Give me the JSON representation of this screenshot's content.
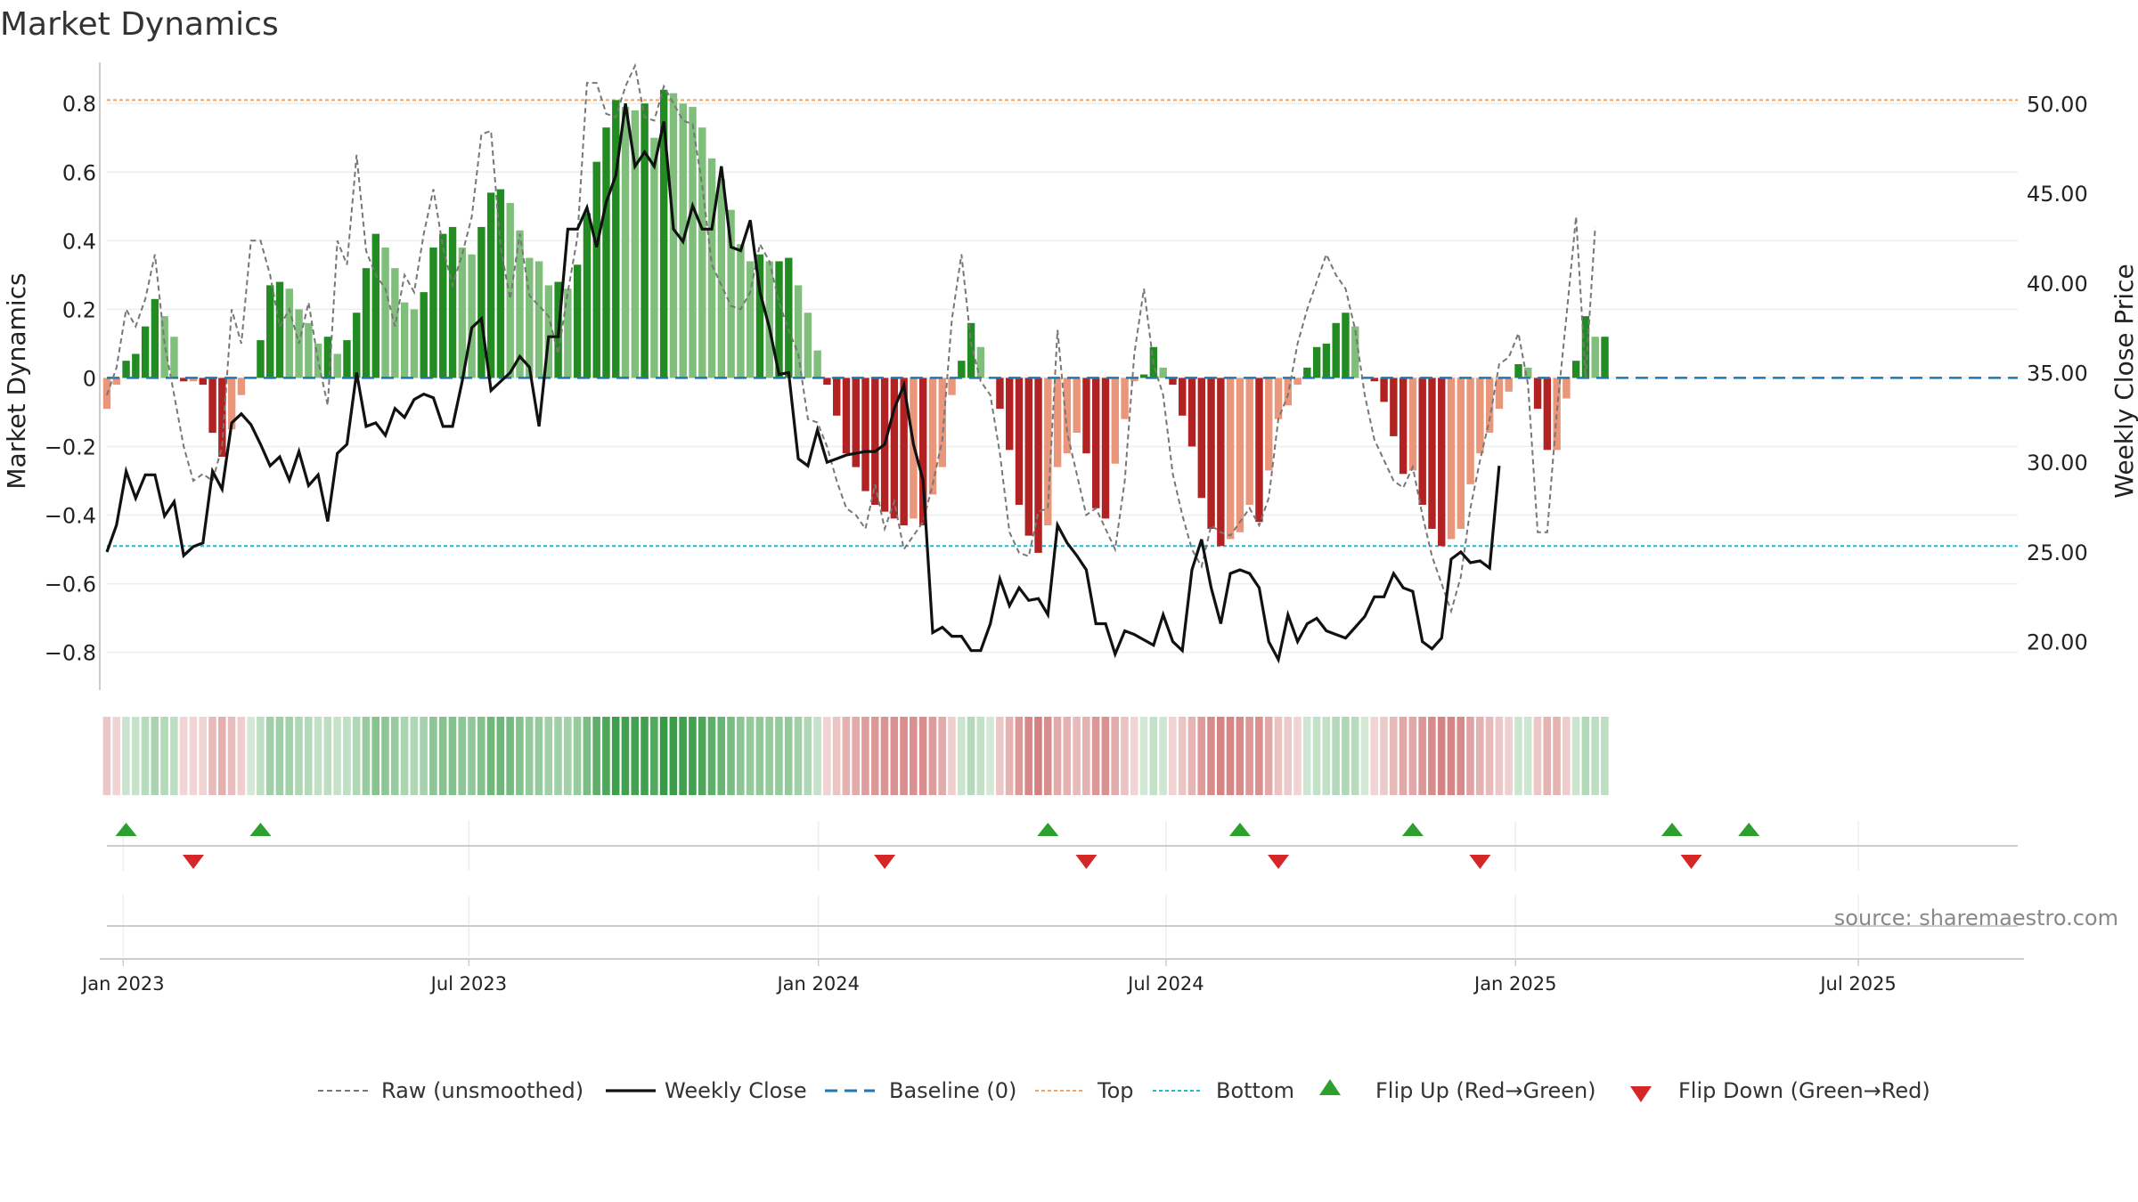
{
  "chart_data": {
    "type": "bar",
    "title": "Market Dynamics",
    "ylabel": "Market Dynamics",
    "y2label": "Weekly Close Price",
    "ylim": [
      -0.91,
      0.92
    ],
    "y2lim": [
      17.3,
      52.3
    ],
    "yticks": [
      0.8,
      0.6,
      0.4,
      0.2,
      0,
      -0.2,
      -0.4,
      -0.6,
      -0.8
    ],
    "yticklabels": [
      "0.8",
      "0.6",
      "0.4",
      "0.2",
      "0",
      "−0.2",
      "−0.4",
      "−0.6",
      "−0.8"
    ],
    "y2ticks": [
      50,
      45,
      40,
      35,
      30,
      25,
      20
    ],
    "y2ticklabels": [
      "50.00",
      "45.00",
      "40.00",
      "35.00",
      "30.00",
      "25.00",
      "20.00"
    ],
    "xticks": [
      "Jan 2023",
      "Jul 2023",
      "Jan 2024",
      "Jul 2024",
      "Jan 2025",
      "Jul 2025"
    ],
    "xtick_weeks": [
      1.7,
      37.7,
      74.1,
      110.3,
      146.7,
      182.4
    ],
    "top_level": 0.81,
    "bottom_level": -0.49,
    "baseline": 0,
    "grid": true,
    "legend_position": "bottom",
    "weeks": 200,
    "momentum": [
      -0.09,
      -0.02,
      0.05,
      0.07,
      0.15,
      0.23,
      0.18,
      0.12,
      -0.01,
      -0.01,
      -0.02,
      -0.16,
      -0.23,
      -0.15,
      -0.05,
      0.0,
      0.11,
      0.27,
      0.28,
      0.26,
      0.2,
      0.16,
      0.1,
      0.12,
      0.07,
      0.11,
      0.19,
      0.32,
      0.42,
      0.38,
      0.32,
      0.22,
      0.2,
      0.25,
      0.38,
      0.42,
      0.44,
      0.38,
      0.36,
      0.44,
      0.54,
      0.55,
      0.51,
      0.43,
      0.35,
      0.34,
      0.27,
      0.28,
      0.26,
      0.33,
      0.48,
      0.63,
      0.73,
      0.81,
      0.79,
      0.78,
      0.8,
      0.7,
      0.84,
      0.83,
      0.8,
      0.79,
      0.73,
      0.64,
      0.58,
      0.49,
      0.39,
      0.34,
      0.36,
      0.34,
      0.34,
      0.35,
      0.27,
      0.19,
      0.08,
      -0.02,
      -0.11,
      -0.22,
      -0.26,
      -0.33,
      -0.37,
      -0.39,
      -0.41,
      -0.43,
      -0.41,
      -0.43,
      -0.34,
      -0.26,
      -0.05,
      0.05,
      0.16,
      0.09,
      0.0,
      -0.09,
      -0.21,
      -0.37,
      -0.46,
      -0.51,
      -0.43,
      -0.26,
      -0.22,
      -0.16,
      -0.22,
      -0.38,
      -0.41,
      -0.25,
      -0.12,
      -0.01,
      0.01,
      0.09,
      0.03,
      -0.02,
      -0.11,
      -0.2,
      -0.35,
      -0.44,
      -0.49,
      -0.47,
      -0.45,
      -0.37,
      -0.42,
      -0.27,
      -0.12,
      -0.08,
      -0.02,
      0.03,
      0.09,
      0.1,
      0.16,
      0.19,
      0.15,
      0.0,
      -0.01,
      -0.07,
      -0.17,
      -0.28,
      -0.27,
      -0.37,
      -0.44,
      -0.49,
      -0.47,
      -0.44,
      -0.31,
      -0.22,
      -0.16,
      -0.09,
      -0.04,
      0.04,
      0.03,
      -0.09,
      -0.21,
      -0.21,
      -0.06,
      0.05,
      0.18,
      0.12,
      0.12
    ],
    "series": [
      {
        "name": "Raw (unsmoothed)",
        "values": [
          -0.05,
          0.03,
          0.2,
          0.15,
          0.23,
          0.36,
          0.1,
          -0.05,
          -0.2,
          -0.3,
          -0.28,
          -0.3,
          -0.2,
          0.2,
          0.1,
          0.4,
          0.4,
          0.3,
          0.15,
          0.2,
          0.1,
          0.22,
          0.05,
          -0.08,
          0.4,
          0.33,
          0.65,
          0.37,
          0.3,
          0.26,
          0.15,
          0.3,
          0.25,
          0.42,
          0.55,
          0.38,
          0.27,
          0.36,
          0.47,
          0.71,
          0.72,
          0.38,
          0.23,
          0.42,
          0.24,
          0.21,
          0.18,
          0.07,
          0.25,
          0.41,
          0.86,
          0.86,
          0.77,
          0.76,
          0.85,
          0.91,
          0.76,
          0.75,
          0.85,
          0.8,
          0.75,
          0.74,
          0.56,
          0.33,
          0.27,
          0.21,
          0.2,
          0.25,
          0.39,
          0.34,
          0.22,
          0.14,
          0.07,
          -0.12,
          -0.13,
          -0.2,
          -0.3,
          -0.38,
          -0.4,
          -0.44,
          -0.31,
          -0.44,
          -0.36,
          -0.5,
          -0.46,
          -0.42,
          -0.31,
          -0.18,
          0.17,
          0.36,
          0.1,
          -0.01,
          -0.05,
          -0.22,
          -0.45,
          -0.51,
          -0.52,
          -0.39,
          -0.38,
          0.14,
          -0.16,
          -0.28,
          -0.4,
          -0.38,
          -0.44,
          -0.5,
          -0.3,
          0.07,
          0.26,
          0.04,
          -0.05,
          -0.28,
          -0.4,
          -0.5,
          -0.55,
          -0.43,
          -0.45,
          -0.46,
          -0.42,
          -0.38,
          -0.43,
          -0.35,
          -0.12,
          -0.05,
          0.1,
          0.2,
          0.28,
          0.36,
          0.3,
          0.26,
          0.14,
          -0.05,
          -0.18,
          -0.24,
          -0.3,
          -0.32,
          -0.26,
          -0.4,
          -0.52,
          -0.6,
          -0.68,
          -0.58,
          -0.38,
          -0.24,
          -0.12,
          0.04,
          0.06,
          0.13,
          -0.02,
          -0.45,
          -0.45,
          -0.1,
          0.18,
          0.47,
          0.0,
          0.44
        ]
      },
      {
        "name": "Weekly Close",
        "values": [
          25.0,
          26.5,
          29.5,
          28.0,
          29.3,
          29.3,
          27.0,
          27.8,
          24.8,
          25.3,
          25.5,
          29.5,
          28.5,
          32.2,
          32.7,
          32.1,
          31.0,
          29.8,
          30.3,
          29.0,
          30.6,
          28.7,
          29.3,
          26.7,
          30.5,
          31.0,
          35.0,
          32.0,
          32.2,
          31.5,
          33.0,
          32.5,
          33.5,
          33.8,
          33.6,
          32.0,
          32.0,
          34.5,
          37.5,
          38.0,
          34.0,
          34.5,
          35.0,
          35.9,
          35.3,
          32.0,
          37.0,
          37.0,
          43.0,
          43.0,
          44.2,
          42.0,
          44.5,
          46.0,
          50.0,
          46.5,
          47.3,
          46.5,
          49.0,
          43.0,
          42.3,
          44.3,
          43.0,
          43.0,
          46.5,
          42.0,
          41.8,
          43.5,
          39.5,
          37.5,
          34.9,
          35.0,
          30.2,
          29.8,
          31.8,
          30.0,
          30.2,
          30.4,
          30.5,
          30.6,
          30.6,
          31.0,
          33.0,
          34.3,
          31.0,
          29.0,
          20.5,
          20.8,
          20.3,
          20.3,
          19.5,
          19.5,
          21.0,
          23.5,
          22.0,
          23.0,
          22.3,
          22.4,
          21.5,
          26.5,
          25.5,
          24.8,
          24.0,
          21.0,
          21.0,
          19.3,
          20.6,
          20.4,
          20.1,
          19.8,
          21.5,
          20.0,
          19.5,
          24.0,
          25.7,
          23.0,
          21.0,
          23.8,
          24.0,
          23.8,
          23.0,
          20.0,
          19.0,
          21.5,
          20.0,
          21.0,
          21.3,
          20.6,
          20.4,
          20.2,
          20.8,
          21.4,
          22.5,
          22.5,
          23.8,
          23.0,
          22.8,
          20.0,
          19.6,
          20.2,
          24.6,
          25.0,
          24.4,
          24.5,
          24.1,
          29.8
        ]
      }
    ],
    "legend": [
      "Raw (unsmoothed)",
      "Weekly Close",
      "Baseline (0)",
      "Top",
      "Bottom",
      "Flip Up (Red→Green)",
      "Flip Down (Green→Red)"
    ],
    "flip_up_weeks": [
      2,
      16,
      98,
      118,
      136,
      163,
      171
    ],
    "flip_down_weeks": [
      9,
      81,
      102,
      122,
      143,
      165
    ],
    "source": "source: sharemaestro.com"
  },
  "colors": {
    "pos_strong": "#228b22",
    "pos_weak": "#7fbf7b",
    "neg_strong": "#b22222",
    "neg_weak": "#e9967a",
    "close_line": "#111111",
    "raw_line": "#777777",
    "baseline": "#1f77b4",
    "top": "#f4a460",
    "bottom": "#17becf",
    "flip_up": "#2ca02c",
    "flip_down": "#d62728"
  }
}
